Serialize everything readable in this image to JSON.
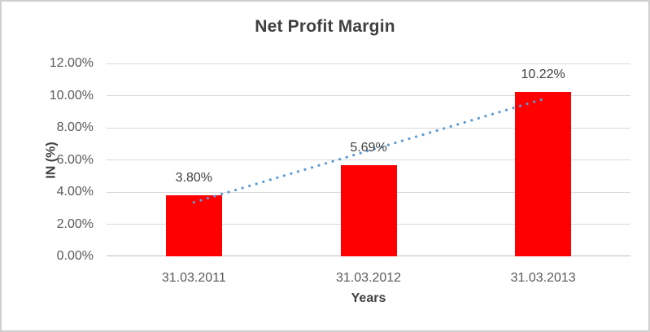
{
  "chart_data": {
    "type": "bar",
    "title": "Net Profit Margin",
    "xlabel": "Years",
    "ylabel": "IN (%)",
    "categories": [
      "31.03.2011",
      "31.03.2012",
      "31.03.2013"
    ],
    "values": [
      3.8,
      5.69,
      10.22
    ],
    "data_labels": [
      "3.80%",
      "5.69%",
      "10.22%"
    ],
    "ylim": [
      0,
      12
    ],
    "yticks": [
      0,
      2,
      4,
      6,
      8,
      10,
      12
    ],
    "ytick_labels": [
      "0.00%",
      "2.00%",
      "4.00%",
      "6.00%",
      "8.00%",
      "10.00%",
      "12.00%"
    ],
    "grid": true,
    "legend": "none",
    "bar_color": "#FF0000",
    "trendline": {
      "type": "linear",
      "style": "dotted",
      "color": "#5B9BD5",
      "start_value": 3.36,
      "end_value": 9.78
    }
  },
  "colors": {
    "background": "#FFFFFF",
    "border": "#D0CECE",
    "gridline": "#D9D9D9",
    "axis_line": "#BFBFBF",
    "title_text": "#404040",
    "axis_text": "#595959",
    "label_text": "#404040"
  }
}
